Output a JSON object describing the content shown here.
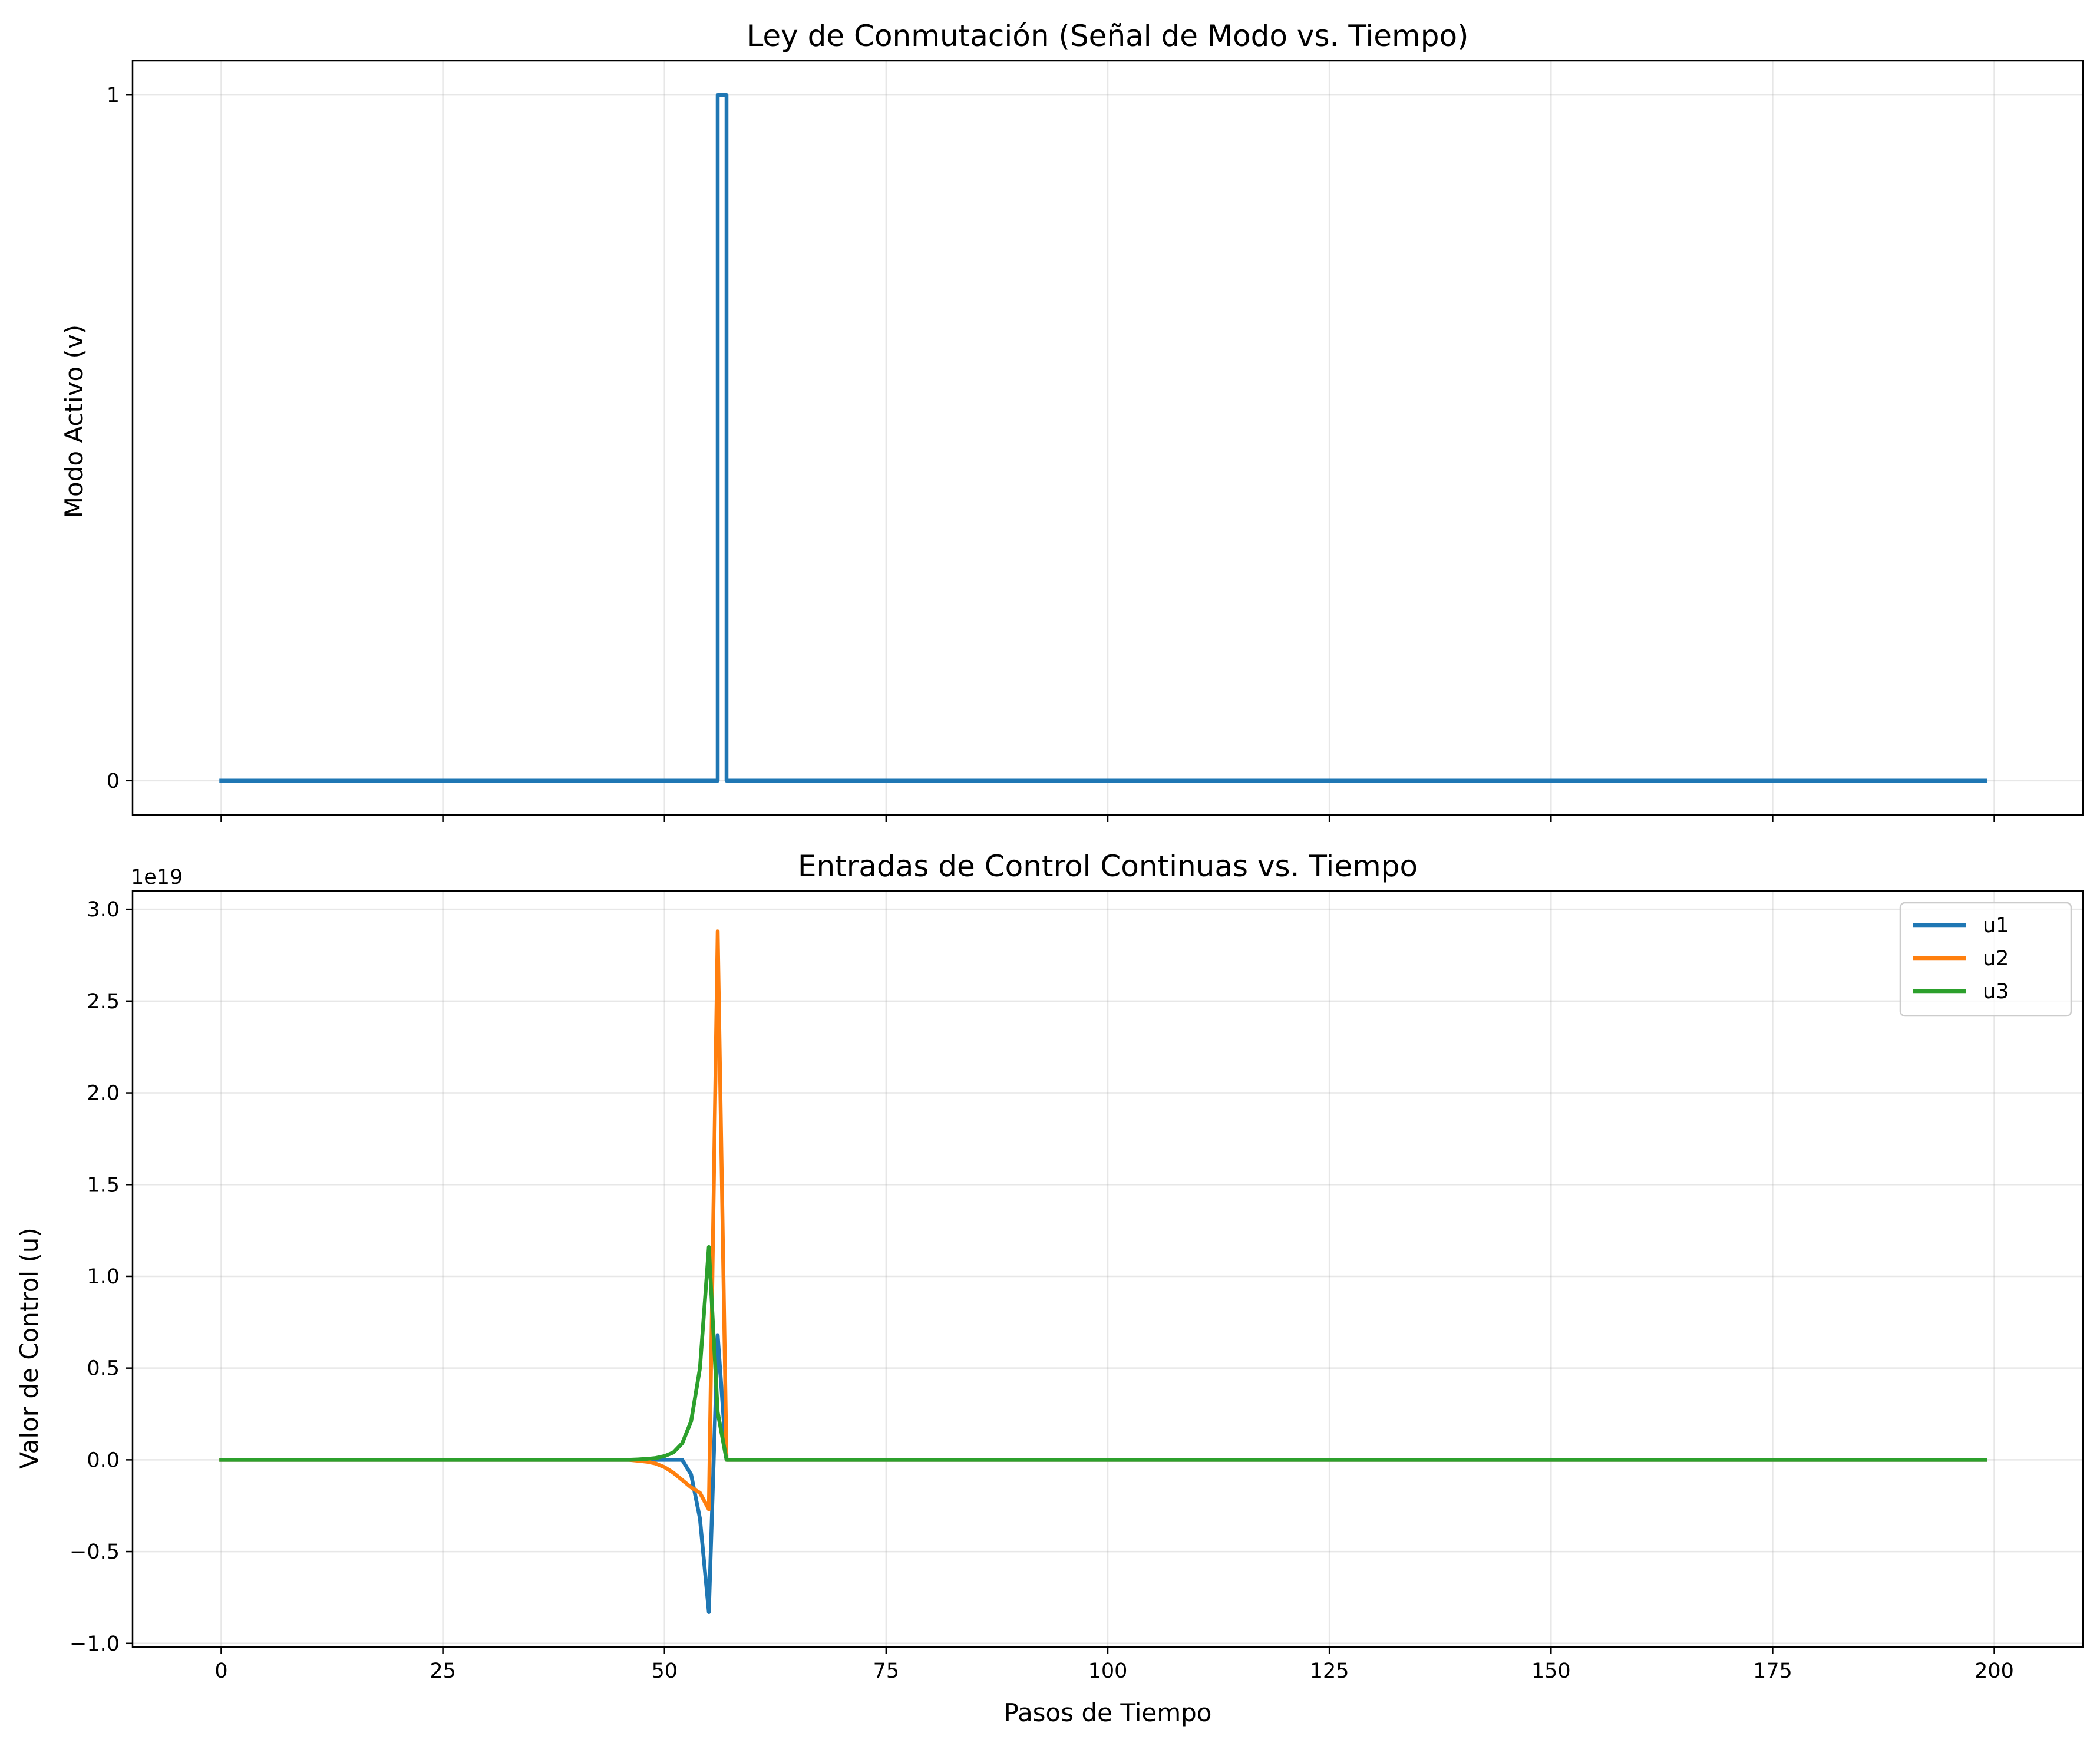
{
  "chart_data": [
    {
      "type": "line",
      "title": "Ley de Conmutación (Señal de Modo vs. Tiempo)",
      "xlabel": "",
      "ylabel": "Modo Activo (v)",
      "xlim": [
        -10,
        210
      ],
      "ylim": [
        -0.05,
        1.05
      ],
      "xticks": [
        0,
        25,
        50,
        75,
        100,
        125,
        150,
        175,
        200
      ],
      "xtick_labels_shown": false,
      "yticks": [
        0,
        1
      ],
      "ytick_labels": [
        "0",
        "1"
      ],
      "grid": true,
      "step": true,
      "series": [
        {
          "color": "#1f77b4",
          "points": [
            [
              0,
              0
            ],
            [
              56,
              0
            ],
            [
              56,
              1
            ],
            [
              57,
              1
            ],
            [
              57,
              0
            ],
            [
              199,
              0
            ]
          ]
        }
      ]
    },
    {
      "type": "line",
      "title": "Entradas de Control Continuas vs. Tiempo",
      "xlabel": "Pasos de Tiempo",
      "ylabel": "Valor de Control (u)",
      "offset_text": "1e19",
      "xlim": [
        -10,
        210
      ],
      "ylim": [
        -1.02,
        3.1
      ],
      "xticks": [
        0,
        25,
        50,
        75,
        100,
        125,
        150,
        175,
        200
      ],
      "xtick_labels": [
        "0",
        "25",
        "50",
        "75",
        "100",
        "125",
        "150",
        "175",
        "200"
      ],
      "yticks": [
        -1.0,
        -0.5,
        0.0,
        0.5,
        1.0,
        1.5,
        2.0,
        2.5,
        3.0
      ],
      "ytick_labels": [
        "−1.0",
        "−0.5",
        "0.0",
        "0.5",
        "1.0",
        "1.5",
        "2.0",
        "2.5",
        "3.0"
      ],
      "grid": true,
      "legend": "upper right",
      "series": [
        {
          "name": "u1",
          "color": "#1f77b4",
          "points": [
            [
              0,
              0
            ],
            [
              50,
              0
            ],
            [
              51,
              0
            ],
            [
              52,
              0
            ],
            [
              53,
              -0.08
            ],
            [
              54,
              -0.32
            ],
            [
              55,
              -0.83
            ],
            [
              56,
              0.68
            ],
            [
              57,
              0
            ],
            [
              199,
              0
            ]
          ]
        },
        {
          "name": "u2",
          "color": "#ff7f0e",
          "points": [
            [
              0,
              0
            ],
            [
              46,
              0
            ],
            [
              47,
              -0.005
            ],
            [
              48,
              -0.01
            ],
            [
              49,
              -0.02
            ],
            [
              50,
              -0.04
            ],
            [
              51,
              -0.07
            ],
            [
              52,
              -0.11
            ],
            [
              53,
              -0.15
            ],
            [
              54,
              -0.18
            ],
            [
              55,
              -0.27
            ],
            [
              56,
              2.88
            ],
            [
              57,
              0
            ],
            [
              199,
              0
            ]
          ]
        },
        {
          "name": "u3",
          "color": "#2ca02c",
          "points": [
            [
              0,
              0
            ],
            [
              46,
              0
            ],
            [
              47,
              0.002
            ],
            [
              48,
              0.005
            ],
            [
              49,
              0.01
            ],
            [
              50,
              0.02
            ],
            [
              51,
              0.04
            ],
            [
              52,
              0.09
            ],
            [
              53,
              0.21
            ],
            [
              54,
              0.5
            ],
            [
              55,
              1.16
            ],
            [
              56,
              0.26
            ],
            [
              57,
              0
            ],
            [
              199,
              0
            ]
          ]
        }
      ]
    }
  ]
}
